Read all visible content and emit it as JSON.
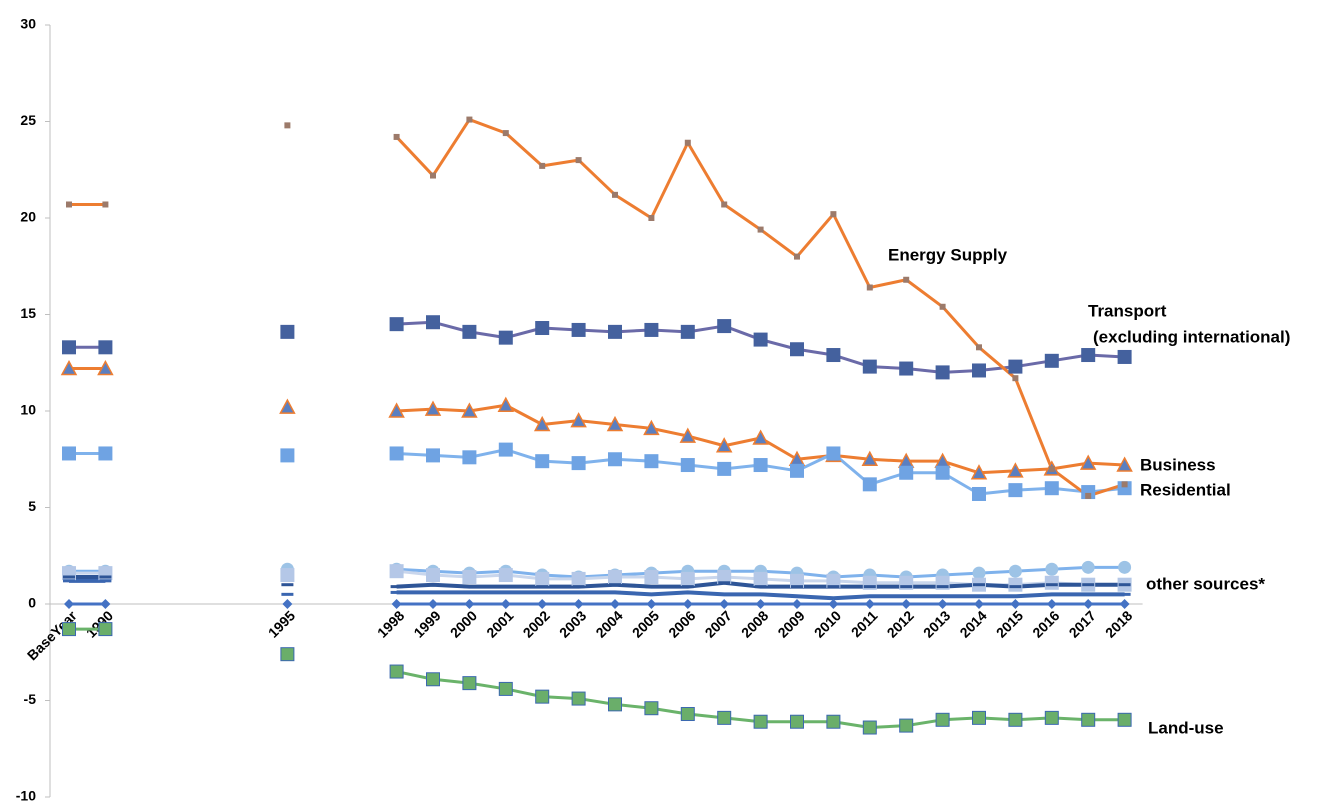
{
  "chart_data": {
    "type": "line",
    "categories": [
      "BaseYear",
      "1990",
      null,
      null,
      null,
      null,
      "1995",
      null,
      null,
      "1998",
      "1999",
      "2000",
      "2001",
      "2002",
      "2003",
      "2004",
      "2005",
      "2006",
      "2007",
      "2008",
      "2009",
      "2010",
      "2011",
      "2012",
      "2013",
      "2014",
      "2015",
      "2016",
      "2017",
      "2018"
    ],
    "ylim": [
      -10,
      30
    ],
    "yticks": [
      -10,
      -5,
      0,
      5,
      10,
      15,
      20,
      25,
      30
    ],
    "grid": false,
    "series": [
      {
        "color": "#7fb2ec",
        "marker": "circle",
        "marker_color": "#9dc3e6",
        "values": [
          1.7,
          1.7,
          null,
          null,
          null,
          null,
          1.8,
          null,
          null,
          1.8,
          1.7,
          1.6,
          1.7,
          1.5,
          1.4,
          1.5,
          1.6,
          1.7,
          1.7,
          1.7,
          1.6,
          1.4,
          1.5,
          1.4,
          1.5,
          1.6,
          1.7,
          1.8,
          1.9,
          1.9
        ]
      },
      {
        "color": "#c9d6ec",
        "marker": "square",
        "marker_color": "#b4c7e7",
        "values": [
          1.6,
          1.6,
          null,
          null,
          null,
          null,
          1.5,
          null,
          null,
          1.7,
          1.5,
          1.4,
          1.5,
          1.3,
          1.3,
          1.4,
          1.4,
          1.3,
          1.4,
          1.3,
          1.2,
          1.2,
          1.1,
          1.1,
          1.1,
          1.0,
          1.0,
          1.1,
          1.0,
          1.0
        ]
      },
      {
        "color": "#2e5597",
        "marker": "dash",
        "marker_color": "#2e5597",
        "values": [
          1.4,
          1.4,
          null,
          null,
          null,
          null,
          1.0,
          null,
          null,
          0.9,
          1.0,
          0.9,
          0.9,
          0.9,
          0.9,
          1.0,
          0.9,
          0.9,
          1.1,
          0.9,
          0.9,
          0.9,
          0.9,
          0.9,
          0.9,
          1.0,
          0.9,
          1.0,
          1.0,
          1.0
        ]
      },
      {
        "color": "#3a66b0",
        "marker": "dash",
        "marker_color": "#3a66b0",
        "values": [
          1.2,
          1.2,
          null,
          null,
          null,
          null,
          0.5,
          null,
          null,
          0.6,
          0.6,
          0.6,
          0.6,
          0.6,
          0.6,
          0.6,
          0.5,
          0.6,
          0.5,
          0.5,
          0.4,
          0.3,
          0.4,
          0.4,
          0.4,
          0.4,
          0.4,
          0.5,
          0.5,
          0.5
        ]
      },
      {
        "color": "#4472c4",
        "marker": "diamond",
        "marker_color": "#4472c4",
        "values": [
          0,
          0,
          null,
          null,
          null,
          null,
          0,
          null,
          null,
          0,
          0,
          0,
          0,
          0,
          0,
          0,
          0,
          0,
          0,
          0,
          0,
          0,
          0,
          0,
          0,
          0,
          0,
          0,
          0,
          0
        ]
      },
      {
        "color": "#6a6aa8",
        "marker": "square",
        "marker_color": "#44619e",
        "values": [
          13.3,
          13.3,
          null,
          null,
          null,
          null,
          14.1,
          null,
          null,
          14.5,
          14.6,
          14.1,
          13.8,
          14.3,
          14.2,
          14.1,
          14.2,
          14.1,
          14.4,
          13.7,
          13.2,
          12.9,
          12.3,
          12.2,
          12.0,
          12.1,
          12.3,
          12.6,
          12.9,
          12.8
        ]
      },
      {
        "color": "#ed7d31",
        "marker": "triangle",
        "marker_color": "#5b7fc0",
        "values": [
          12.2,
          12.2,
          null,
          null,
          null,
          null,
          10.2,
          null,
          null,
          10.0,
          10.1,
          10.0,
          10.3,
          9.3,
          9.5,
          9.3,
          9.1,
          8.7,
          8.2,
          8.6,
          7.5,
          7.7,
          7.5,
          7.4,
          7.4,
          6.8,
          6.9,
          7.0,
          7.3,
          7.2
        ]
      },
      {
        "color": "#7fb2ec",
        "marker": "square",
        "marker_color": "#6fa3e3",
        "values": [
          7.8,
          7.8,
          null,
          null,
          null,
          null,
          7.7,
          null,
          null,
          7.8,
          7.7,
          7.6,
          8.0,
          7.4,
          7.3,
          7.5,
          7.4,
          7.2,
          7.0,
          7.2,
          6.9,
          7.8,
          6.2,
          6.8,
          6.8,
          5.7,
          5.9,
          6.0,
          5.8,
          6.0
        ]
      },
      {
        "color": "#ed7d31",
        "marker": "small-square",
        "marker_color": "#9c7a6a",
        "values": [
          20.7,
          20.7,
          null,
          null,
          null,
          null,
          24.8,
          null,
          null,
          24.2,
          22.2,
          25.1,
          24.4,
          22.7,
          23.0,
          21.2,
          20.0,
          23.9,
          20.7,
          19.4,
          18.0,
          20.2,
          16.4,
          16.8,
          15.4,
          13.3,
          11.7,
          7.0,
          5.6,
          6.2
        ]
      },
      {
        "color": "#6ab36a",
        "marker": "square",
        "marker_color": "#6aae6a",
        "values": [
          -1.3,
          -1.3,
          null,
          null,
          null,
          null,
          -2.6,
          null,
          null,
          -3.5,
          -3.9,
          -4.1,
          -4.4,
          -4.8,
          -4.9,
          -5.2,
          -5.4,
          -5.7,
          -5.9,
          -6.1,
          -6.1,
          -6.1,
          -6.4,
          -6.3,
          -6.0,
          -5.9,
          -6.0,
          -5.9,
          -6.0,
          -6.0
        ]
      }
    ],
    "annotations": [
      "Energy Supply",
      "Transport",
      "(excluding international)",
      "Business",
      "Residential",
      "other sources*",
      "Land-use"
    ]
  }
}
